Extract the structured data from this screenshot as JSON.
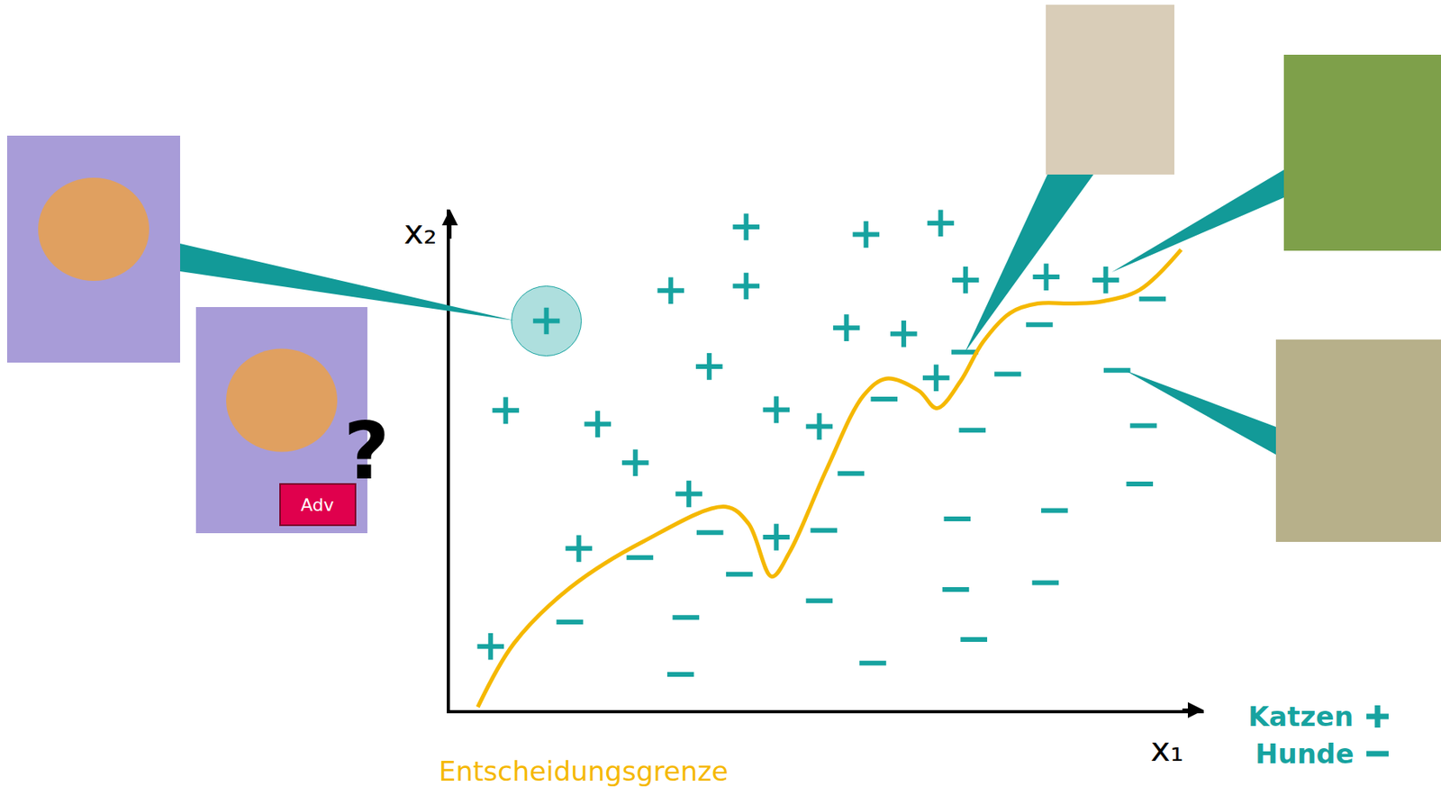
{
  "chart_data": {
    "type": "scatter",
    "x_label": "x₁",
    "y_label": "x₂",
    "xlim": [
      0,
      100
    ],
    "ylim": [
      0,
      66
    ],
    "tick_labels": false,
    "grid": false,
    "series": [
      {
        "name": "Katzen",
        "type": "scatter",
        "marker": "plus",
        "color": "#17a3a0",
        "x": [
          12.8,
          39.3,
          55.2,
          65.1,
          29.3,
          39.3,
          68.4,
          79.1,
          87.0,
          52.6,
          60.2,
          34.4,
          7.4,
          19.6,
          43.3,
          49.0,
          24.6,
          64.5,
          31.7,
          17.1,
          43.3,
          5.4
        ],
        "y": [
          51.3,
          63.7,
          62.7,
          64.2,
          55.3,
          55.9,
          56.7,
          57.1,
          56.7,
          50.4,
          49.6,
          45.3,
          39.5,
          37.7,
          39.6,
          37.4,
          32.6,
          43.8,
          28.5,
          21.3,
          22.8,
          8.4
        ]
      },
      {
        "name": "Hunde",
        "type": "scatter",
        "marker": "minus",
        "color": "#17a3a0",
        "x": [
          68.3,
          78.2,
          74.0,
          93.2,
          88.5,
          57.6,
          69.3,
          92.0,
          53.2,
          91.5,
          67.3,
          80.2,
          34.5,
          49.6,
          25.2,
          38.4,
          15.9,
          31.3,
          49.0,
          67.1,
          79.0,
          69.5,
          56.1,
          30.6
        ],
        "y": [
          47.2,
          50.8,
          44.3,
          54.2,
          44.8,
          41.0,
          36.9,
          37.5,
          31.2,
          29.8,
          25.2,
          26.3,
          23.4,
          23.7,
          20.1,
          17.9,
          11.6,
          12.2,
          14.4,
          15.9,
          16.8,
          9.3,
          6.2,
          4.7
        ]
      },
      {
        "name": "Entscheidungsgrenze",
        "type": "line",
        "color": "#f5b800",
        "x": [
          3.7,
          8.5,
          15.9,
          25.6,
          36.6,
          39.6,
          42.7,
          45.1,
          50.0,
          54.9,
          57.9,
          62.2,
          64.6,
          67.7,
          70.7,
          74.4,
          78.0,
          82.9,
          86.6,
          91.5,
          97.0
        ],
        "y": [
          0.4,
          8.8,
          16.1,
          22.2,
          26.8,
          24.6,
          17.6,
          20.9,
          31.8,
          41.5,
          43.7,
          42.1,
          39.8,
          43.3,
          48.5,
          52.4,
          53.6,
          53.6,
          53.9,
          55.4,
          60.7
        ]
      }
    ],
    "annotations": [
      "Adv",
      "?"
    ]
  }
}
